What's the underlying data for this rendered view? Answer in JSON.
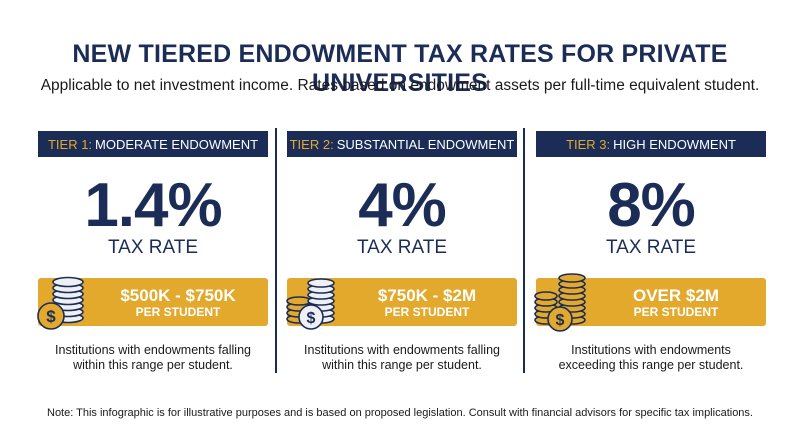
{
  "title": "NEW TIERED ENDOWMENT TAX RATES FOR PRIVATE UNIVERSITIES",
  "subtitle": "Applicable to net investment income. Rates based on endowment assets per full-time equivalent student.",
  "tiers": [
    {
      "tier_label": "TIER 1:",
      "tier_name": "MODERATE ENDOWMENT",
      "rate": "1.4%",
      "rate_label": "TAX RATE",
      "range": "$500K - $750K",
      "range_sub": "PER STUDENT",
      "description_line1": "Institutions with endowments falling",
      "description_line2": "within this range per student.",
      "icon": "coin-stack-icon"
    },
    {
      "tier_label": "TIER 2:",
      "tier_name": "SUBSTANTIAL ENDOWMENT",
      "rate": "4%",
      "rate_label": "TAX RATE",
      "range": "$750K - $2M",
      "range_sub": "PER STUDENT",
      "description_line1": "Institutions with endowments falling",
      "description_line2": "within this range per student.",
      "icon": "coin-stacks-icon"
    },
    {
      "tier_label": "TIER 3:",
      "tier_name": "HIGH ENDOWMENT",
      "rate": "8%",
      "rate_label": "TAX RATE",
      "range": "OVER $2M",
      "range_sub": "PER STUDENT",
      "description_line1": "Institutions with endowments",
      "description_line2": "exceeding this range per student.",
      "icon": "gold-coin-stacks-icon"
    }
  ],
  "note": "Note: This infographic is for illustrative purposes and is based on proposed legislation. Consult with financial advisors for specific tax implications.",
  "colors": {
    "navy": "#1b2d57",
    "gold": "#e3a92d",
    "silver": "#eef0f3"
  }
}
